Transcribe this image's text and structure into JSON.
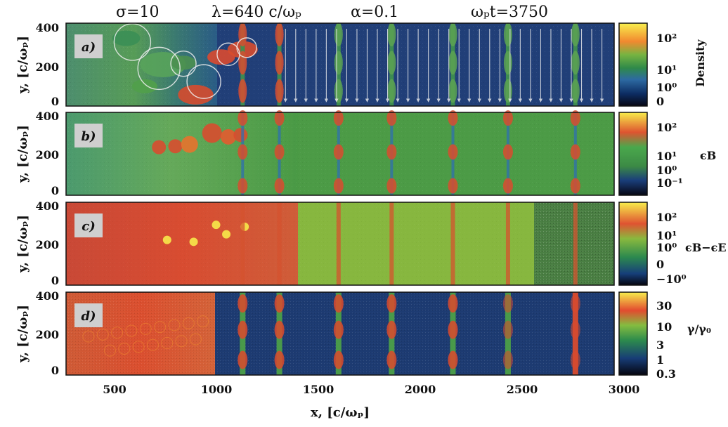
{
  "header": {
    "sigma": "σ=10",
    "lambda": "λ=640  c/ωₚ",
    "alpha": "α=0.1",
    "time": "ωₚt=3750"
  },
  "axes": {
    "xlabel": "x, [c/ωₚ]",
    "ylabel": "y, [c/ωₚ]",
    "xticks": [
      "500",
      "1000",
      "1500",
      "2000",
      "2500",
      "3000"
    ],
    "yticks": [
      "400",
      "200",
      "0"
    ]
  },
  "panels": [
    {
      "id": "a",
      "tag": "a)",
      "colorbar_title": "Density",
      "colorbar_ticks": [
        "10²",
        "10¹",
        "10⁰",
        "0"
      ]
    },
    {
      "id": "b",
      "tag": "b)",
      "colorbar_title": "ϵB",
      "colorbar_ticks": [
        "10²",
        "10¹",
        "10⁰",
        "10⁻¹"
      ]
    },
    {
      "id": "c",
      "tag": "c)",
      "colorbar_title": "ϵB−ϵE",
      "colorbar_ticks": [
        "10²",
        "10¹",
        "10⁰",
        "0",
        "−10⁰"
      ]
    },
    {
      "id": "d",
      "tag": "d)",
      "colorbar_title": "γ/γ₀",
      "colorbar_ticks": [
        "30",
        "10",
        "3",
        "1",
        "0.3"
      ]
    }
  ],
  "chart_data": {
    "type": "heatmap",
    "title": "σ=10  λ=640 c/ωₚ  α=0.1  ωₚt=3750",
    "xlabel": "x, [c/ωₚ]",
    "ylabel": "y, [c/ωₚ]",
    "xlim": [
      325,
      3010
    ],
    "ylim": [
      -20,
      420
    ],
    "x_ticks": [
      500,
      1000,
      1500,
      2000,
      2500,
      3000
    ],
    "y_ticks": [
      0,
      200,
      400
    ],
    "current_sheet_x": [
      1190,
      1370,
      1660,
      1920,
      2220,
      2490,
      2820
    ],
    "panels": [
      "Density",
      "ϵB",
      "ϵB−ϵE",
      "γ/γ₀"
    ]
  },
  "colors": {
    "background": "#ffffff",
    "frame": "#111111",
    "tag_bg": "#cfcfcf",
    "upstream_dark": "#183a73",
    "upstream_field": "#4f9a46",
    "hot_red": "#d8492e",
    "hot_orange": "#ec8b2d",
    "streamline": "#f0f0f0"
  }
}
